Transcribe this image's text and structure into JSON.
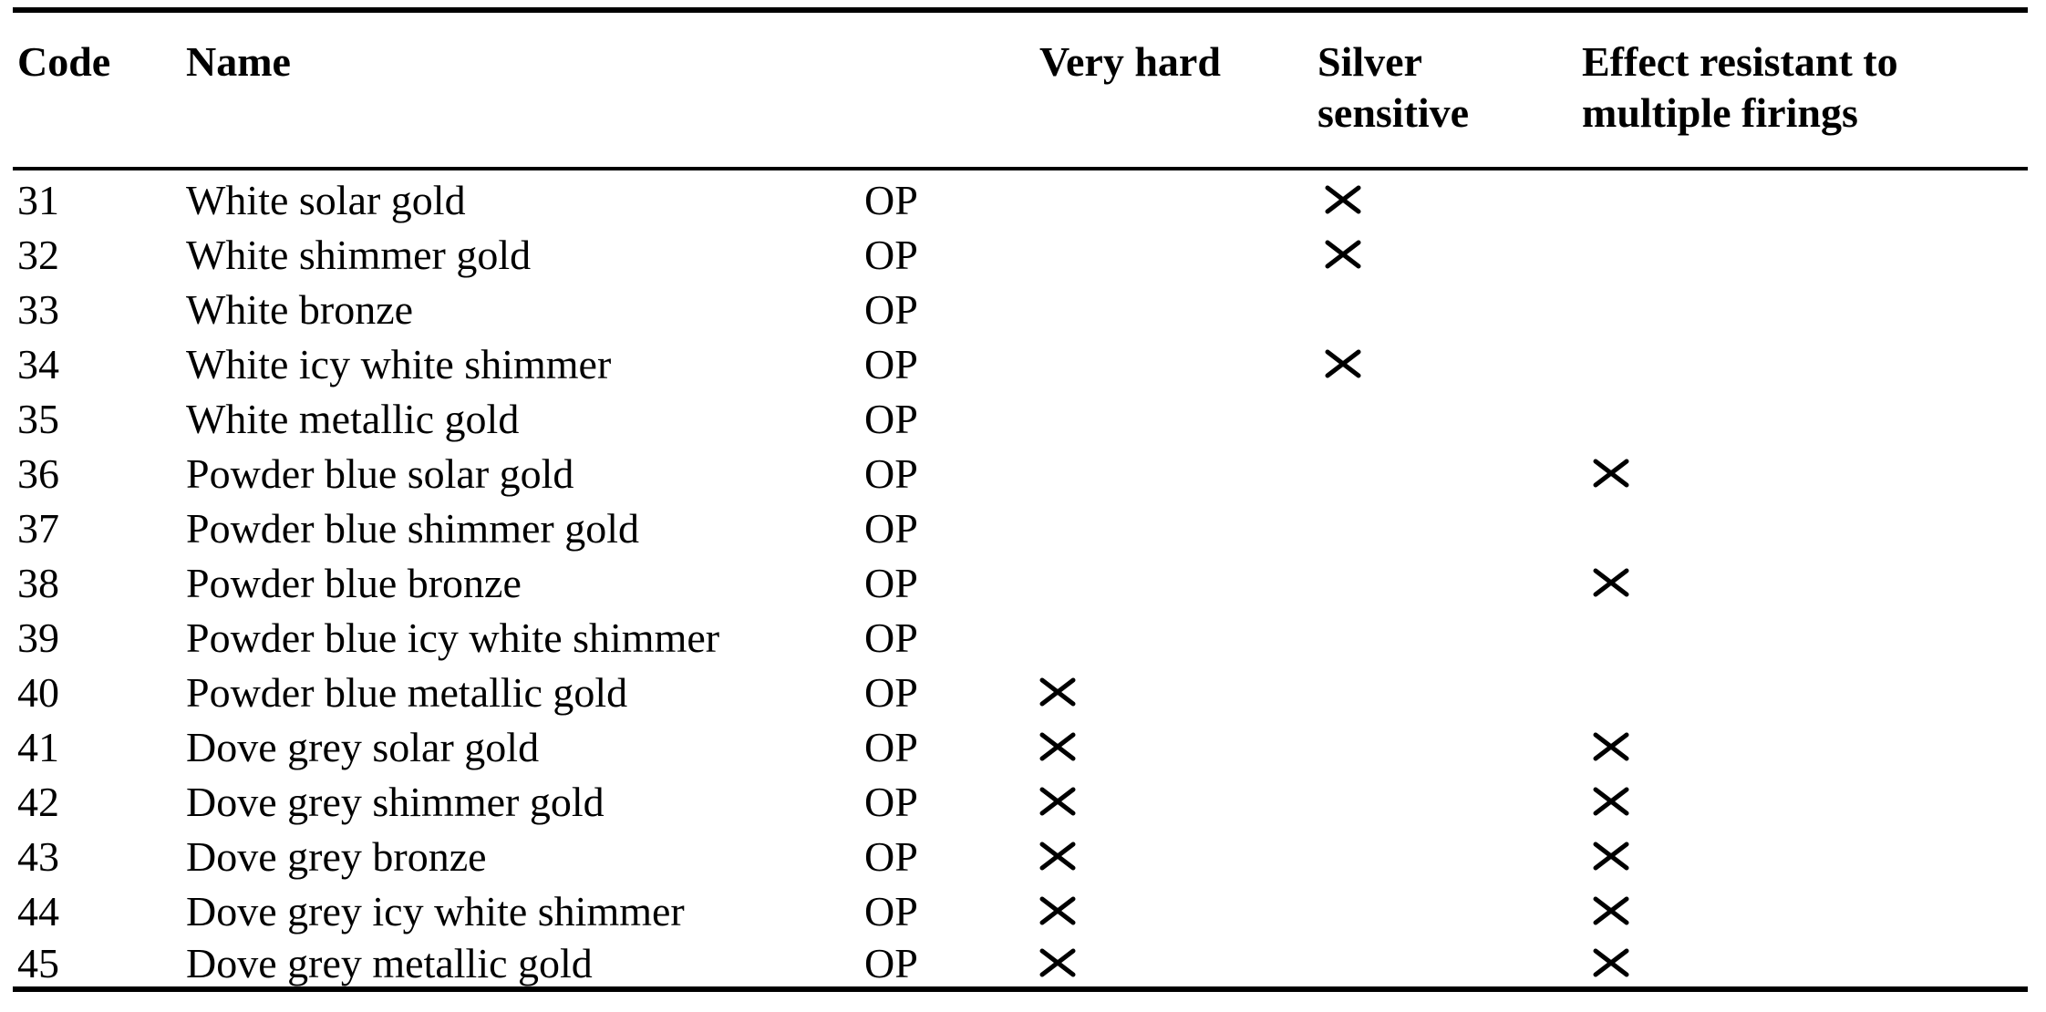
{
  "page": {
    "background_color": "#ffffff",
    "text_color": "#000000",
    "rule_color": "#000000"
  },
  "table": {
    "headers": {
      "code": "Code",
      "name": "Name",
      "type": "",
      "very_hard": "Very hard",
      "silver_sensitive_line1": "Silver",
      "silver_sensitive_line2": "sensitive",
      "effect_resistant_line1": "Effect resistant to",
      "effect_resistant_line2": "multiple firings"
    },
    "cross_glyph": "×",
    "rows": [
      {
        "code": "31",
        "name": "White solar gold",
        "type": "OP",
        "very_hard": false,
        "silver_sensitive": true,
        "effect_resistant": false
      },
      {
        "code": "32",
        "name": "White shimmer gold",
        "type": "OP",
        "very_hard": false,
        "silver_sensitive": true,
        "effect_resistant": false
      },
      {
        "code": "33",
        "name": "White bronze",
        "type": "OP",
        "very_hard": false,
        "silver_sensitive": false,
        "effect_resistant": false
      },
      {
        "code": "34",
        "name": "White icy white shimmer",
        "type": "OP",
        "very_hard": false,
        "silver_sensitive": true,
        "effect_resistant": false
      },
      {
        "code": "35",
        "name": "White metallic gold",
        "type": "OP",
        "very_hard": false,
        "silver_sensitive": false,
        "effect_resistant": false
      },
      {
        "code": "36",
        "name": "Powder blue solar gold",
        "type": "OP",
        "very_hard": false,
        "silver_sensitive": false,
        "effect_resistant": true
      },
      {
        "code": "37",
        "name": "Powder blue shimmer gold",
        "type": "OP",
        "very_hard": false,
        "silver_sensitive": false,
        "effect_resistant": false
      },
      {
        "code": "38",
        "name": "Powder blue bronze",
        "type": "OP",
        "very_hard": false,
        "silver_sensitive": false,
        "effect_resistant": true
      },
      {
        "code": "39",
        "name": "Powder blue icy white shimmer",
        "type": "OP",
        "very_hard": false,
        "silver_sensitive": false,
        "effect_resistant": false
      },
      {
        "code": "40",
        "name": "Powder blue metallic gold",
        "type": "OP",
        "very_hard": true,
        "silver_sensitive": false,
        "effect_resistant": false
      },
      {
        "code": "41",
        "name": "Dove grey solar gold",
        "type": "OP",
        "very_hard": true,
        "silver_sensitive": false,
        "effect_resistant": true
      },
      {
        "code": "42",
        "name": "Dove grey shimmer gold",
        "type": "OP",
        "very_hard": true,
        "silver_sensitive": false,
        "effect_resistant": true
      },
      {
        "code": "43",
        "name": "Dove grey bronze",
        "type": "OP",
        "very_hard": true,
        "silver_sensitive": false,
        "effect_resistant": true
      },
      {
        "code": "44",
        "name": "Dove grey icy white shimmer",
        "type": "OP",
        "very_hard": true,
        "silver_sensitive": false,
        "effect_resistant": true
      },
      {
        "code": "45",
        "name": "Dove grey metallic gold",
        "type": "OP",
        "very_hard": true,
        "silver_sensitive": false,
        "effect_resistant": true
      }
    ]
  }
}
